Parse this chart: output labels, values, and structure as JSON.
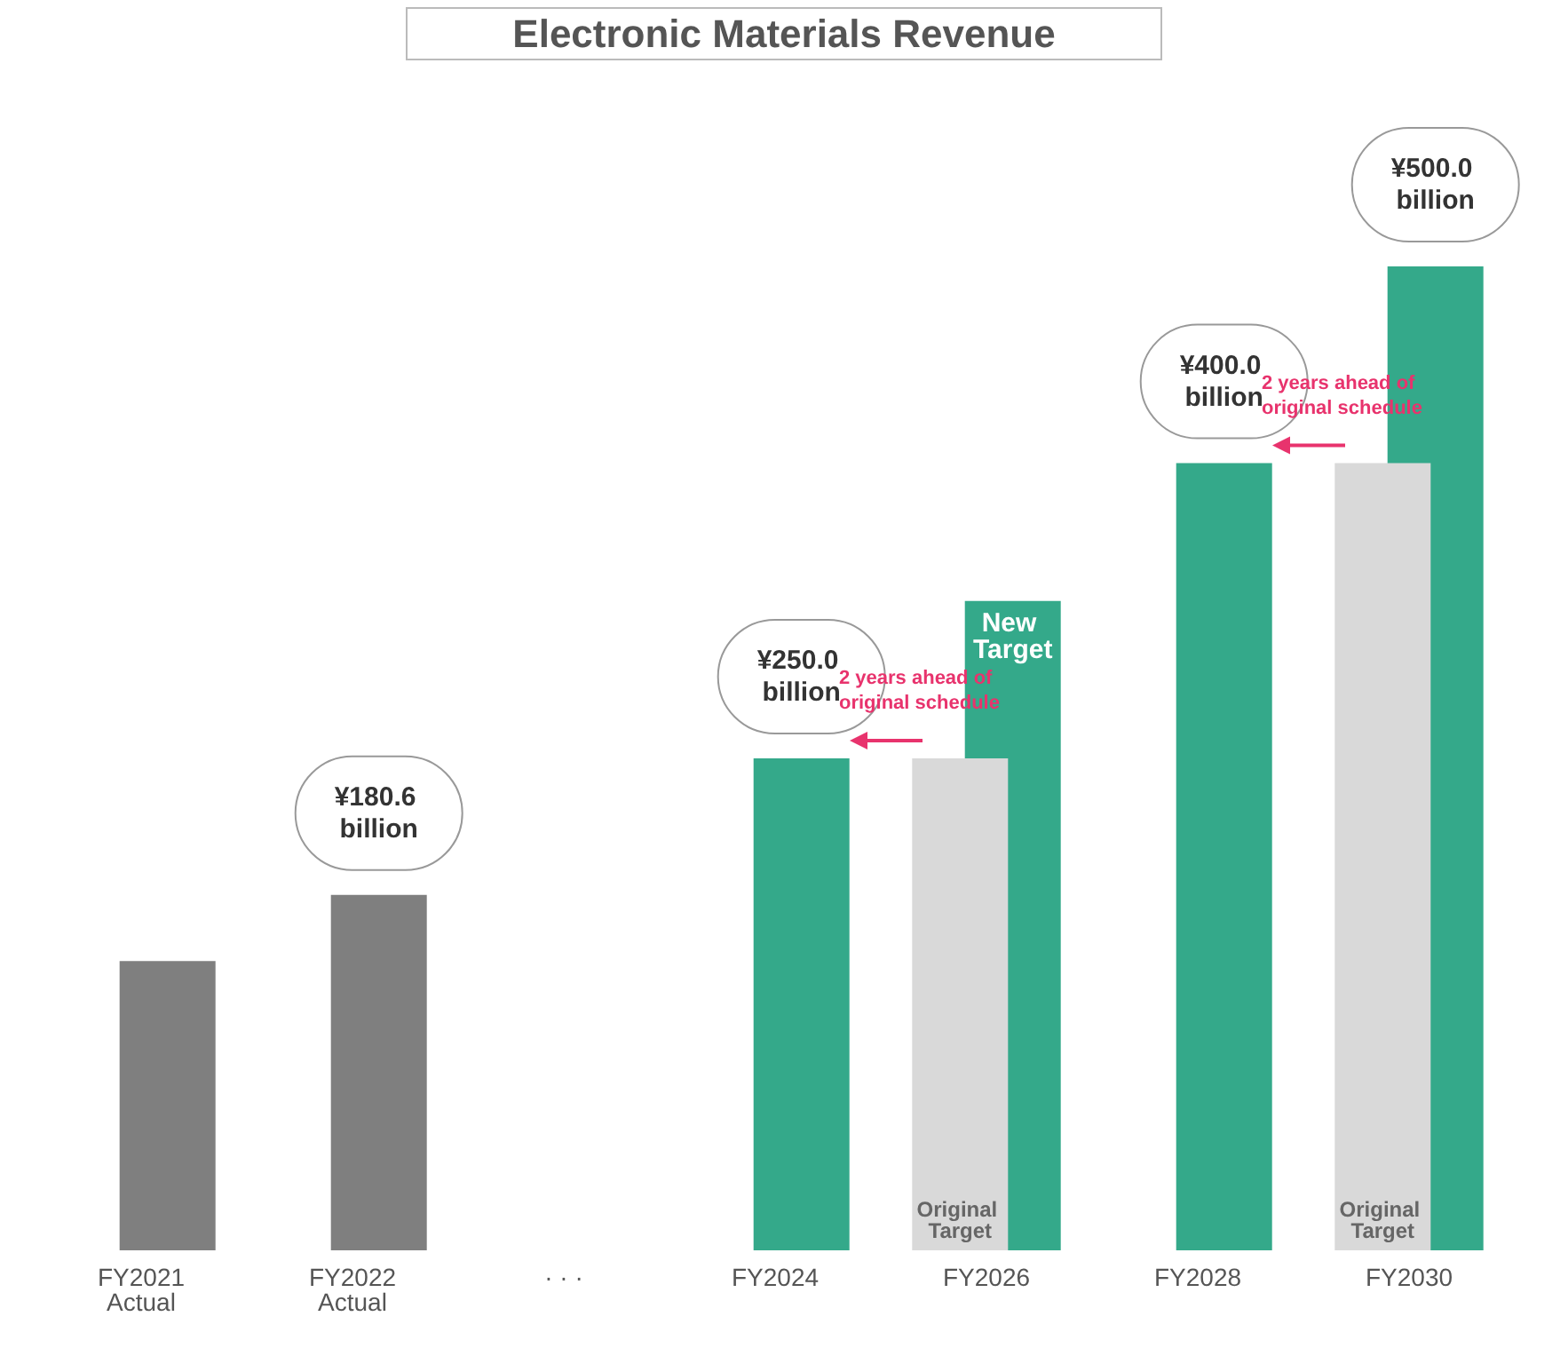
{
  "chart_data": {
    "type": "bar",
    "title": "Electronic Materials Revenue",
    "categories": [
      "FY2021\nActual",
      "FY2022\nActual",
      "· · ·",
      "FY2024",
      "FY2026",
      "FY2028",
      "FY2030"
    ],
    "series": [
      {
        "name": "Original Target",
        "color": "#d9d9d9",
        "values": [
          null,
          null,
          null,
          null,
          250,
          null,
          400
        ]
      },
      {
        "color": "#7f7f7f",
        "values": [
          147,
          180.6,
          null,
          null,
          null,
          null,
          null
        ],
        "value_labels": [
          null,
          "¥180.6 billion",
          null,
          null,
          null,
          null,
          null
        ]
      },
      {
        "name": "New Target",
        "color": "#34a98a",
        "values": [
          null,
          null,
          null,
          250,
          330,
          400,
          500
        ],
        "value_labels": [
          null,
          null,
          null,
          "¥250.0 billion",
          null,
          "¥400.0 billion",
          "¥500.0 billion"
        ]
      }
    ],
    "annotations": [
      {
        "text": "2 years ahead of original schedule",
        "x": "FY2026",
        "y": 250
      },
      {
        "text": "2 years ahead of original schedule",
        "x": "FY2030",
        "y": 400
      }
    ]
  }
}
